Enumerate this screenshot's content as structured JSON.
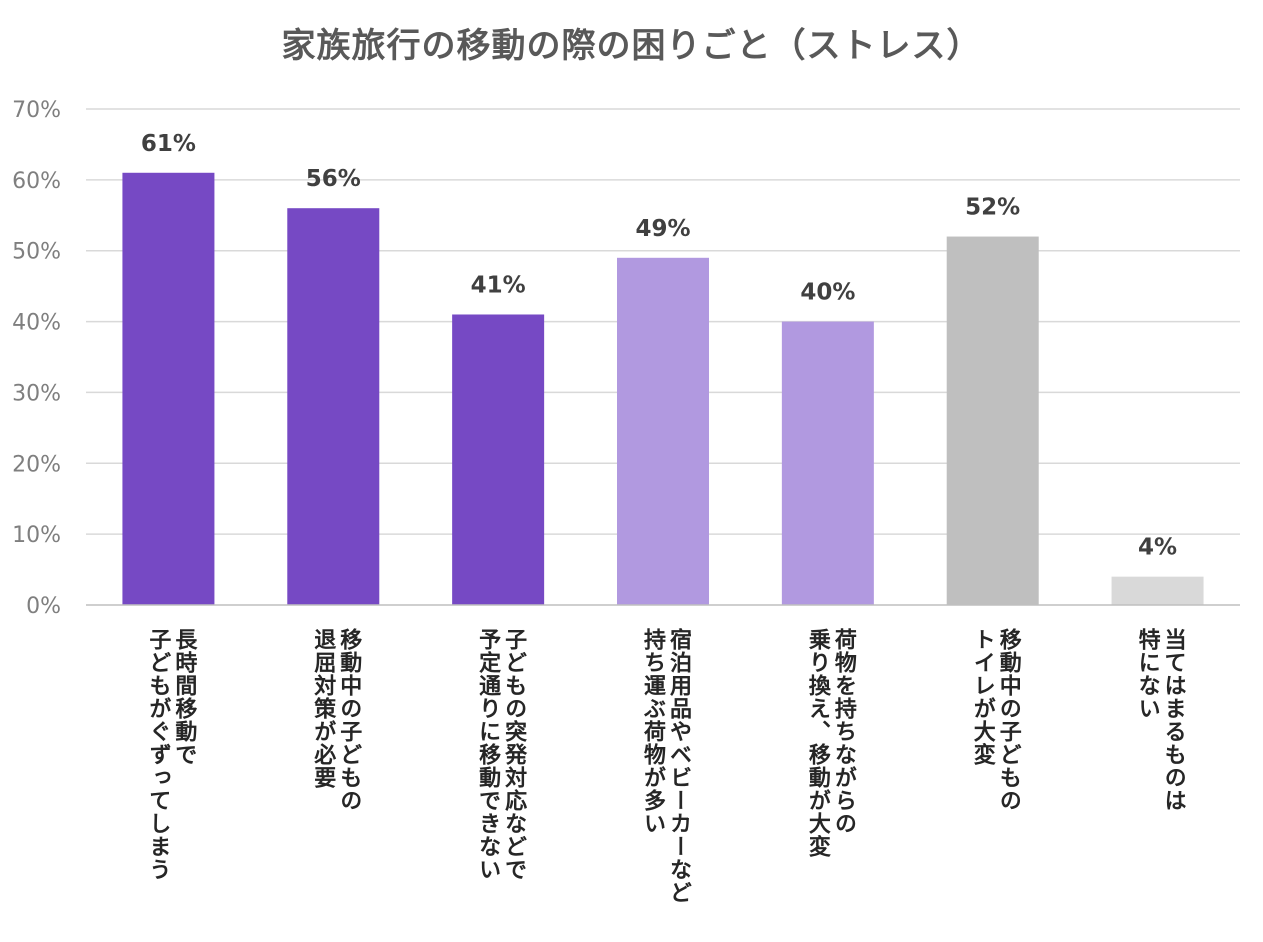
{
  "chart_data": {
    "type": "bar",
    "title": "家族旅行の移動の際の困りごと（ストレス）",
    "xlabel": "",
    "ylabel": "",
    "ylim": [
      0,
      70
    ],
    "yticks": [
      "0%",
      "10%",
      "20%",
      "30%",
      "40%",
      "50%",
      "60%",
      "70%"
    ],
    "grid": true,
    "categories": [
      "長時間移動で子どもがぐずってしまう",
      "移動中の子どもの退屈対策が必要",
      "子どもの突発対応などで予定通りに移動できない",
      "宿泊用品やベビーカーなど持ち運ぶ荷物が多い",
      "荷物を持ちながらの乗り換え、移動が大変",
      "移動中の子どものトイレが大変",
      "当てはまるものは特にない"
    ],
    "category_lines": [
      [
        "長時間移動で",
        "子どもがぐずってしまう"
      ],
      [
        "移動中の子どもの",
        "退屈対策が必要"
      ],
      [
        "子どもの突発対応などで",
        "予定通りに移動できない"
      ],
      [
        "宿泊用品やベビーカーなど",
        "持ち運ぶ荷物が多い"
      ],
      [
        "荷物を持ちながらの",
        "乗り換え、移動が大変"
      ],
      [
        "移動中の子どもの",
        "トイレが大変"
      ],
      [
        "当てはまるものは",
        "特にない"
      ]
    ],
    "values": [
      61,
      56,
      41,
      49,
      40,
      52,
      4
    ],
    "data_labels": [
      "61%",
      "56%",
      "41%",
      "49%",
      "40%",
      "52%",
      "4%"
    ],
    "colors": [
      "#7649c4",
      "#7649c4",
      "#7649c4",
      "#b199e0",
      "#b199e0",
      "#bfbfbf",
      "#d9d9d9"
    ],
    "gridline_color": "#d9d9d9",
    "axis_color": "#bfbfbf"
  }
}
